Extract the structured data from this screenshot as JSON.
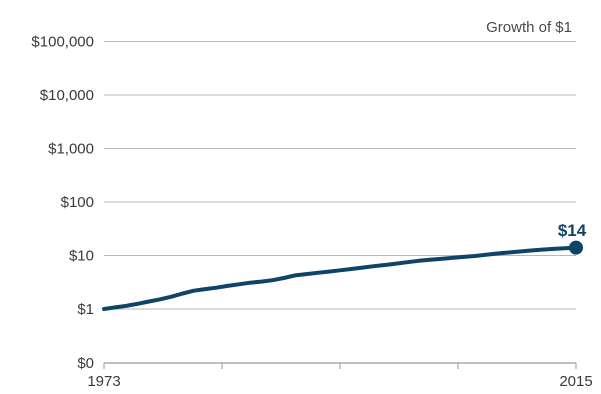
{
  "chart_data": {
    "type": "line",
    "title": "Growth of $1",
    "y_scale": "log",
    "yticks": [
      {
        "value": 0,
        "label": "$0"
      },
      {
        "value": 1,
        "label": "$1"
      },
      {
        "value": 10,
        "label": "$10"
      },
      {
        "value": 100,
        "label": "$100"
      },
      {
        "value": 1000,
        "label": "$1,000"
      },
      {
        "value": 10000,
        "label": "$10,000"
      },
      {
        "value": 100000,
        "label": "$100,000"
      }
    ],
    "xlim": [
      1973,
      2015
    ],
    "xtick_labels": [
      {
        "value": 1973,
        "label": "1973"
      },
      {
        "value": 2015,
        "label": "2015"
      }
    ],
    "xtick_marks": [
      1973,
      1983.5,
      1994,
      2004.5,
      2015
    ],
    "grid": true,
    "end_label": "$14",
    "series": [
      {
        "color": "#0e4466",
        "x": [
          1973,
          1974,
          1975,
          1976,
          1977,
          1978,
          1979,
          1980,
          1981,
          1982,
          1983,
          1984,
          1985,
          1986,
          1987,
          1988,
          1989,
          1990,
          1991,
          1992,
          1993,
          1994,
          1995,
          1996,
          1997,
          1998,
          1999,
          2000,
          2001,
          2002,
          2003,
          2004,
          2005,
          2006,
          2007,
          2008,
          2009,
          2010,
          2011,
          2012,
          2013,
          2014,
          2015
        ],
        "y": [
          1.0,
          1.07,
          1.15,
          1.25,
          1.38,
          1.52,
          1.7,
          1.95,
          2.2,
          2.35,
          2.5,
          2.7,
          2.9,
          3.1,
          3.25,
          3.45,
          3.8,
          4.25,
          4.5,
          4.75,
          5.0,
          5.3,
          5.6,
          5.95,
          6.3,
          6.65,
          7.05,
          7.5,
          7.95,
          8.3,
          8.65,
          9.0,
          9.4,
          9.8,
          10.3,
          10.9,
          11.4,
          11.9,
          12.4,
          12.9,
          13.3,
          13.7,
          14.0
        ]
      }
    ]
  }
}
